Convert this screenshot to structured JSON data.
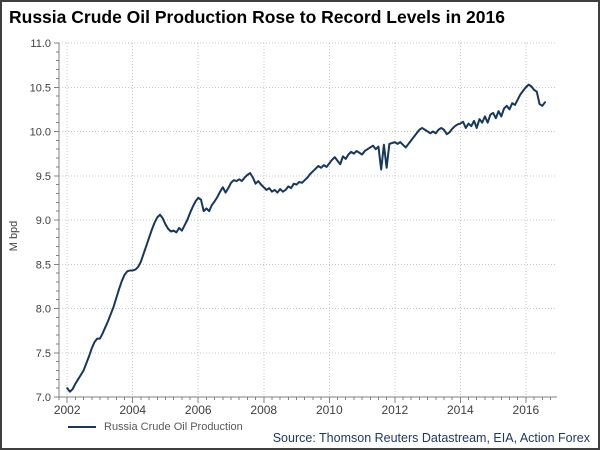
{
  "title": "Russia Crude Oil Production Rose to Record Levels in 2016",
  "source": "Source: Thomson Reuters Datastream, EIA, Action Forex",
  "legend": {
    "label": "Russia Crude Oil Production"
  },
  "colors": {
    "line": "#17375e",
    "title": "#000000",
    "source": "#1f3864",
    "legend_text": "#595959",
    "axis": "#808080",
    "tick_label": "#404040",
    "gridline": "#c4c4c4",
    "background": "#ffffff"
  },
  "chart_data": {
    "type": "line",
    "title": "Russia Crude Oil Production Rose to Record Levels in 2016",
    "xlabel": "",
    "ylabel": "M bpd",
    "legend_position": "bottom-left",
    "grid": "dotted",
    "ylim": [
      7.0,
      11.0
    ],
    "y_major_ticks": [
      7.0,
      7.5,
      8.0,
      8.5,
      9.0,
      9.5,
      10.0,
      10.5,
      11.0
    ],
    "y_minor_step": 0.1,
    "xlim": [
      2001.75,
      2016.95
    ],
    "x_major_ticks": [
      2002,
      2004,
      2006,
      2008,
      2010,
      2012,
      2014,
      2016
    ],
    "x_tick_labels": [
      "2002",
      "2004",
      "2006",
      "2008",
      "2010",
      "2012",
      "2014",
      "2016"
    ],
    "x_minor_step": 0.25,
    "series": [
      {
        "name": "Russia Crude Oil Production",
        "x_start": 2002.0,
        "x_step": 0.0833333,
        "frequency": "monthly",
        "range": "Jan 2002 - Aug 2016",
        "values": [
          7.1,
          7.06,
          7.09,
          7.15,
          7.2,
          7.25,
          7.3,
          7.38,
          7.46,
          7.55,
          7.62,
          7.66,
          7.66,
          7.72,
          7.79,
          7.86,
          7.94,
          8.02,
          8.12,
          8.22,
          8.31,
          8.38,
          8.42,
          8.43,
          8.43,
          8.44,
          8.47,
          8.53,
          8.62,
          8.71,
          8.8,
          8.89,
          8.97,
          9.03,
          9.06,
          9.02,
          8.95,
          8.9,
          8.87,
          8.88,
          8.86,
          8.91,
          8.88,
          8.94,
          9.0,
          9.08,
          9.15,
          9.21,
          9.25,
          9.23,
          9.1,
          9.13,
          9.1,
          9.17,
          9.21,
          9.26,
          9.32,
          9.37,
          9.31,
          9.36,
          9.42,
          9.45,
          9.44,
          9.46,
          9.44,
          9.48,
          9.51,
          9.53,
          9.48,
          9.41,
          9.44,
          9.4,
          9.37,
          9.34,
          9.36,
          9.32,
          9.34,
          9.31,
          9.35,
          9.32,
          9.34,
          9.38,
          9.36,
          9.41,
          9.4,
          9.43,
          9.42,
          9.45,
          9.48,
          9.52,
          9.55,
          9.58,
          9.61,
          9.59,
          9.62,
          9.6,
          9.64,
          9.68,
          9.71,
          9.67,
          9.63,
          9.72,
          9.69,
          9.74,
          9.77,
          9.75,
          9.78,
          9.76,
          9.74,
          9.78,
          9.8,
          9.82,
          9.84,
          9.8,
          9.83,
          9.57,
          9.85,
          9.59,
          9.86,
          9.87,
          9.88,
          9.86,
          9.88,
          9.85,
          9.82,
          9.86,
          9.9,
          9.94,
          9.98,
          10.02,
          10.04,
          10.02,
          10.0,
          9.98,
          10.0,
          9.98,
          10.02,
          10.04,
          10.02,
          9.97,
          9.99,
          10.03,
          10.06,
          10.08,
          10.09,
          10.11,
          10.04,
          10.09,
          10.06,
          10.12,
          10.04,
          10.14,
          10.1,
          10.17,
          10.1,
          10.19,
          10.21,
          10.15,
          10.23,
          10.17,
          10.26,
          10.29,
          10.25,
          10.32,
          10.3,
          10.36,
          10.42,
          10.46,
          10.5,
          10.53,
          10.51,
          10.47,
          10.45,
          10.31,
          10.29,
          10.33
        ]
      }
    ]
  }
}
